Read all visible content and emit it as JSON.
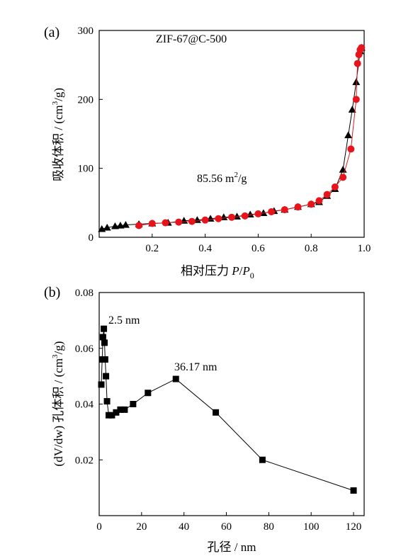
{
  "colors": {
    "adsorption": "#000000",
    "desorption": "#e8141c",
    "desorption_line": "#d91a1a",
    "axes": "#000000"
  },
  "chart_data": [
    {
      "type": "line",
      "panel_label": "(a)",
      "title": "ZIF-67@C-500",
      "annotation": "85.56 m",
      "annotation_sup": "2",
      "annotation_tail": "/g",
      "xlabel_prefix": "相对压力 ",
      "xlabel_p": "P",
      "xlabel_slash": "/",
      "xlabel_p0": "P",
      "xlabel_sub": "0",
      "ylabel": "吸收体积 / (cm",
      "ylabel_sup": "3",
      "ylabel_tail": "/g)",
      "xlim": [
        0.0,
        1.0
      ],
      "ylim": [
        0,
        300
      ],
      "xticks": [
        0.2,
        0.4,
        0.6,
        0.8,
        1.0
      ],
      "xtick_labels": [
        "0.2",
        "0.4",
        "0.6",
        "0.8",
        "1.0"
      ],
      "yticks": [
        0,
        100,
        200,
        300
      ],
      "ytick_labels": [
        "0",
        "100",
        "200",
        "300"
      ],
      "grid": false,
      "series": [
        {
          "marker": "triangle",
          "x": [
            0.01,
            0.03,
            0.06,
            0.08,
            0.1,
            0.15,
            0.2,
            0.26,
            0.32,
            0.37,
            0.42,
            0.47,
            0.52,
            0.57,
            0.62,
            0.66,
            0.7,
            0.75,
            0.8,
            0.83,
            0.86,
            0.89,
            0.92,
            0.94,
            0.955,
            0.97,
            0.985,
            0.99
          ],
          "y": [
            12,
            14,
            16,
            17,
            18,
            19,
            20,
            21,
            24,
            25,
            27,
            29,
            30,
            33,
            35,
            38,
            40,
            44,
            48,
            51,
            60,
            70,
            98,
            148,
            185,
            225,
            270,
            275
          ]
        },
        {
          "marker": "circle",
          "x": [
            0.99,
            0.985,
            0.98,
            0.975,
            0.97,
            0.95,
            0.92,
            0.89,
            0.86,
            0.83,
            0.8,
            0.75,
            0.7,
            0.65,
            0.6,
            0.55,
            0.5,
            0.45,
            0.4,
            0.35,
            0.3,
            0.25,
            0.2,
            0.15
          ],
          "y": [
            275,
            272,
            265,
            252,
            200,
            128,
            87,
            73,
            62,
            53,
            48,
            44,
            40,
            37,
            34,
            31,
            29,
            27,
            25,
            23,
            22,
            21,
            20,
            17
          ]
        }
      ]
    },
    {
      "type": "line",
      "panel_label": "(b)",
      "annotations": [
        "2.5 nm",
        "36.17 nm"
      ],
      "xlabel": "孔径 / nm",
      "ylabel": "(dV/dw) 孔体积 / (cm",
      "ylabel_sup": "3",
      "ylabel_tail": "/g)",
      "xlim": [
        0,
        125
      ],
      "ylim": [
        0.0,
        0.08
      ],
      "xticks": [
        0,
        20,
        40,
        60,
        80,
        100,
        120
      ],
      "xtick_labels": [
        "0",
        "20",
        "40",
        "60",
        "80",
        "100",
        "120"
      ],
      "yticks": [
        0.02,
        0.04,
        0.06,
        0.08
      ],
      "ytick_labels": [
        "0.02",
        "0.04",
        "0.06",
        "0.08"
      ],
      "grid": false,
      "series": [
        {
          "marker": "square",
          "x": [
            1.0,
            1.4,
            1.8,
            2.2,
            2.5,
            2.8,
            3.2,
            3.7,
            4.5,
            6.0,
            8.0,
            10.0,
            12.0,
            16.0,
            23.0,
            36.17,
            55.0,
            77.0,
            120.0
          ],
          "y": [
            0.047,
            0.056,
            0.064,
            0.067,
            0.062,
            0.056,
            0.05,
            0.041,
            0.036,
            0.036,
            0.037,
            0.038,
            0.038,
            0.04,
            0.044,
            0.049,
            0.037,
            0.02,
            0.009
          ]
        }
      ]
    }
  ]
}
